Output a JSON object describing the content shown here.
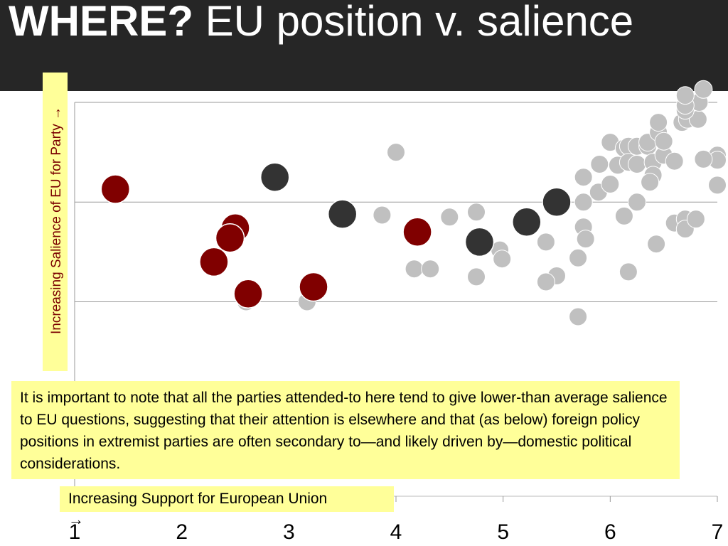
{
  "page": {
    "title_bold": "WHERE?",
    "title_rest": " EU position v. salience",
    "note": "It is important to note that all the parties attended-to here tend to give lower-than average salience to EU questions, suggesting that their attention is elsewhere and that (as below) foreign policy positions in extremist parties are often secondary to—and likely driven by—domestic political considerations."
  },
  "colors": {
    "title_bg": "#262626",
    "highlight_box": "#ffff99",
    "other_parties": "#c0c0c0",
    "dark_group": "#333333",
    "red_group": "#800000"
  },
  "chart_data": {
    "type": "scatter",
    "xlabel": "Increasing Support for European Union",
    "xlabel_arrow": "→",
    "ylabel": "Increasing Salience of EU for Party →",
    "xlim": [
      1,
      7
    ],
    "ylim": [
      -0.95,
      3
    ],
    "x_ticks": [
      "1",
      "2",
      "3",
      "4",
      "5",
      "6",
      "7"
    ],
    "y_gridlines": [
      1,
      2
    ],
    "grid": "horizontal",
    "series": [
      {
        "key": "other",
        "color": "#c0c0c0",
        "points": [
          [
            4.0,
            2.5
          ],
          [
            3.87,
            1.87
          ],
          [
            3.17,
            1.0
          ],
          [
            2.6,
            1.0
          ],
          [
            4.17,
            1.33
          ],
          [
            4.32,
            1.33
          ],
          [
            4.5,
            1.85
          ],
          [
            4.75,
            1.9
          ],
          [
            4.78,
            1.65
          ],
          [
            4.75,
            1.25
          ],
          [
            4.97,
            1.52
          ],
          [
            4.99,
            1.43
          ],
          [
            5.4,
            1.6
          ],
          [
            5.5,
            1.26
          ],
          [
            5.4,
            1.2
          ],
          [
            5.7,
            1.44
          ],
          [
            5.75,
            1.75
          ],
          [
            5.77,
            1.63
          ],
          [
            5.75,
            2.0
          ],
          [
            5.75,
            2.25
          ],
          [
            5.7,
            0.85
          ],
          [
            5.9,
            2.38
          ],
          [
            5.89,
            2.1
          ],
          [
            6.0,
            2.18
          ],
          [
            6.0,
            2.6
          ],
          [
            6.07,
            2.37
          ],
          [
            6.13,
            2.54
          ],
          [
            6.17,
            2.56
          ],
          [
            6.17,
            2.4
          ],
          [
            6.25,
            2.38
          ],
          [
            6.25,
            2.56
          ],
          [
            6.25,
            2.0
          ],
          [
            6.35,
            2.56
          ],
          [
            6.35,
            2.6
          ],
          [
            6.4,
            2.4
          ],
          [
            6.4,
            2.27
          ],
          [
            6.37,
            2.2
          ],
          [
            6.45,
            2.7
          ],
          [
            6.5,
            2.47
          ],
          [
            6.5,
            2.61
          ],
          [
            6.6,
            2.41
          ],
          [
            6.6,
            1.79
          ],
          [
            6.7,
            1.83
          ],
          [
            6.7,
            1.73
          ],
          [
            6.8,
            1.83
          ],
          [
            6.43,
            1.58
          ],
          [
            6.17,
            1.3
          ],
          [
            6.45,
            2.8
          ],
          [
            6.67,
            2.8
          ],
          [
            6.72,
            2.83
          ],
          [
            6.82,
            2.83
          ],
          [
            6.7,
            2.92
          ],
          [
            6.83,
            3.0
          ],
          [
            6.7,
            2.97
          ],
          [
            6.7,
            3.07
          ],
          [
            6.87,
            3.13
          ],
          [
            7.0,
            2.47
          ],
          [
            7.0,
            2.42
          ],
          [
            6.87,
            2.43
          ],
          [
            7.0,
            2.17
          ],
          [
            6.13,
            1.86
          ]
        ]
      },
      {
        "key": "dark",
        "color": "#333333",
        "points": [
          [
            2.87,
            2.25
          ],
          [
            3.5,
            1.88
          ],
          [
            4.78,
            1.6
          ],
          [
            5.22,
            1.8
          ],
          [
            5.5,
            2.0
          ]
        ]
      },
      {
        "key": "red",
        "color": "#800000",
        "points": [
          [
            1.38,
            2.13
          ],
          [
            2.5,
            1.74
          ],
          [
            2.45,
            1.64
          ],
          [
            2.3,
            1.4
          ],
          [
            2.62,
            1.08
          ],
          [
            3.23,
            1.15
          ],
          [
            4.2,
            1.7
          ]
        ]
      }
    ]
  }
}
